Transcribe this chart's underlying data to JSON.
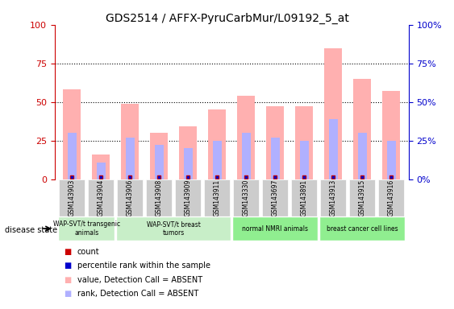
{
  "title": "GDS2514 / AFFX-PyruCarbMur/L09192_5_at",
  "samples": [
    "GSM143903",
    "GSM143904",
    "GSM143906",
    "GSM143908",
    "GSM143909",
    "GSM143911",
    "GSM143330",
    "GSM143697",
    "GSM143891",
    "GSM143913",
    "GSM143915",
    "GSM143916"
  ],
  "pink_bar_values": [
    58,
    16,
    49,
    30,
    34,
    45,
    54,
    47,
    47,
    85,
    65,
    57
  ],
  "blue_bar_values": [
    30,
    11,
    27,
    22,
    20,
    25,
    30,
    27,
    25,
    39,
    30,
    25
  ],
  "small_red_values": [
    1,
    1,
    1,
    1,
    1,
    1,
    1,
    1,
    1,
    1,
    1,
    1
  ],
  "small_blue_values": [
    1,
    1,
    1,
    1,
    1,
    1,
    1,
    1,
    1,
    1,
    1,
    1
  ],
  "groups": [
    {
      "label": "WAP-SVT/t transgenic\nanimals",
      "start": 0,
      "end": 2,
      "color": "#c8f0c8"
    },
    {
      "label": "WAP-SVT/t breast\ntumors",
      "start": 2,
      "end": 5,
      "color": "#c8f0c8"
    },
    {
      "label": "normal NMRI animals",
      "start": 6,
      "end": 8,
      "color": "#90ee90"
    },
    {
      "label": "breast cancer cell lines",
      "start": 9,
      "end": 11,
      "color": "#90ee90"
    }
  ],
  "ylim": [
    0,
    100
  ],
  "yticks": [
    0,
    25,
    50,
    75,
    100
  ],
  "yticklabels_left": [
    "0",
    "25",
    "50",
    "75",
    "100"
  ],
  "yticklabels_right": [
    "0%",
    "25%",
    "50%",
    "75%",
    "100%"
  ],
  "left_yaxis_color": "#cc0000",
  "right_yaxis_color": "#0000cc",
  "pink_color": "#ffb0b0",
  "blue_color": "#b0b0ff",
  "red_dot_color": "#cc0000",
  "blue_dot_color": "#0000cc",
  "bg_color": "#f0f0f0",
  "legend_items": [
    {
      "label": "count",
      "color": "#cc0000",
      "marker": "s"
    },
    {
      "label": "percentile rank within the sample",
      "color": "#0000cc",
      "marker": "s"
    },
    {
      "label": "value, Detection Call = ABSENT",
      "color": "#ffb0b0",
      "marker": "s"
    },
    {
      "label": "rank, Detection Call = ABSENT",
      "color": "#b0b0ff",
      "marker": "s"
    }
  ],
  "disease_state_label": "disease state",
  "group_box_color": "#d8d8d8",
  "tick_bg_color": "#cccccc"
}
